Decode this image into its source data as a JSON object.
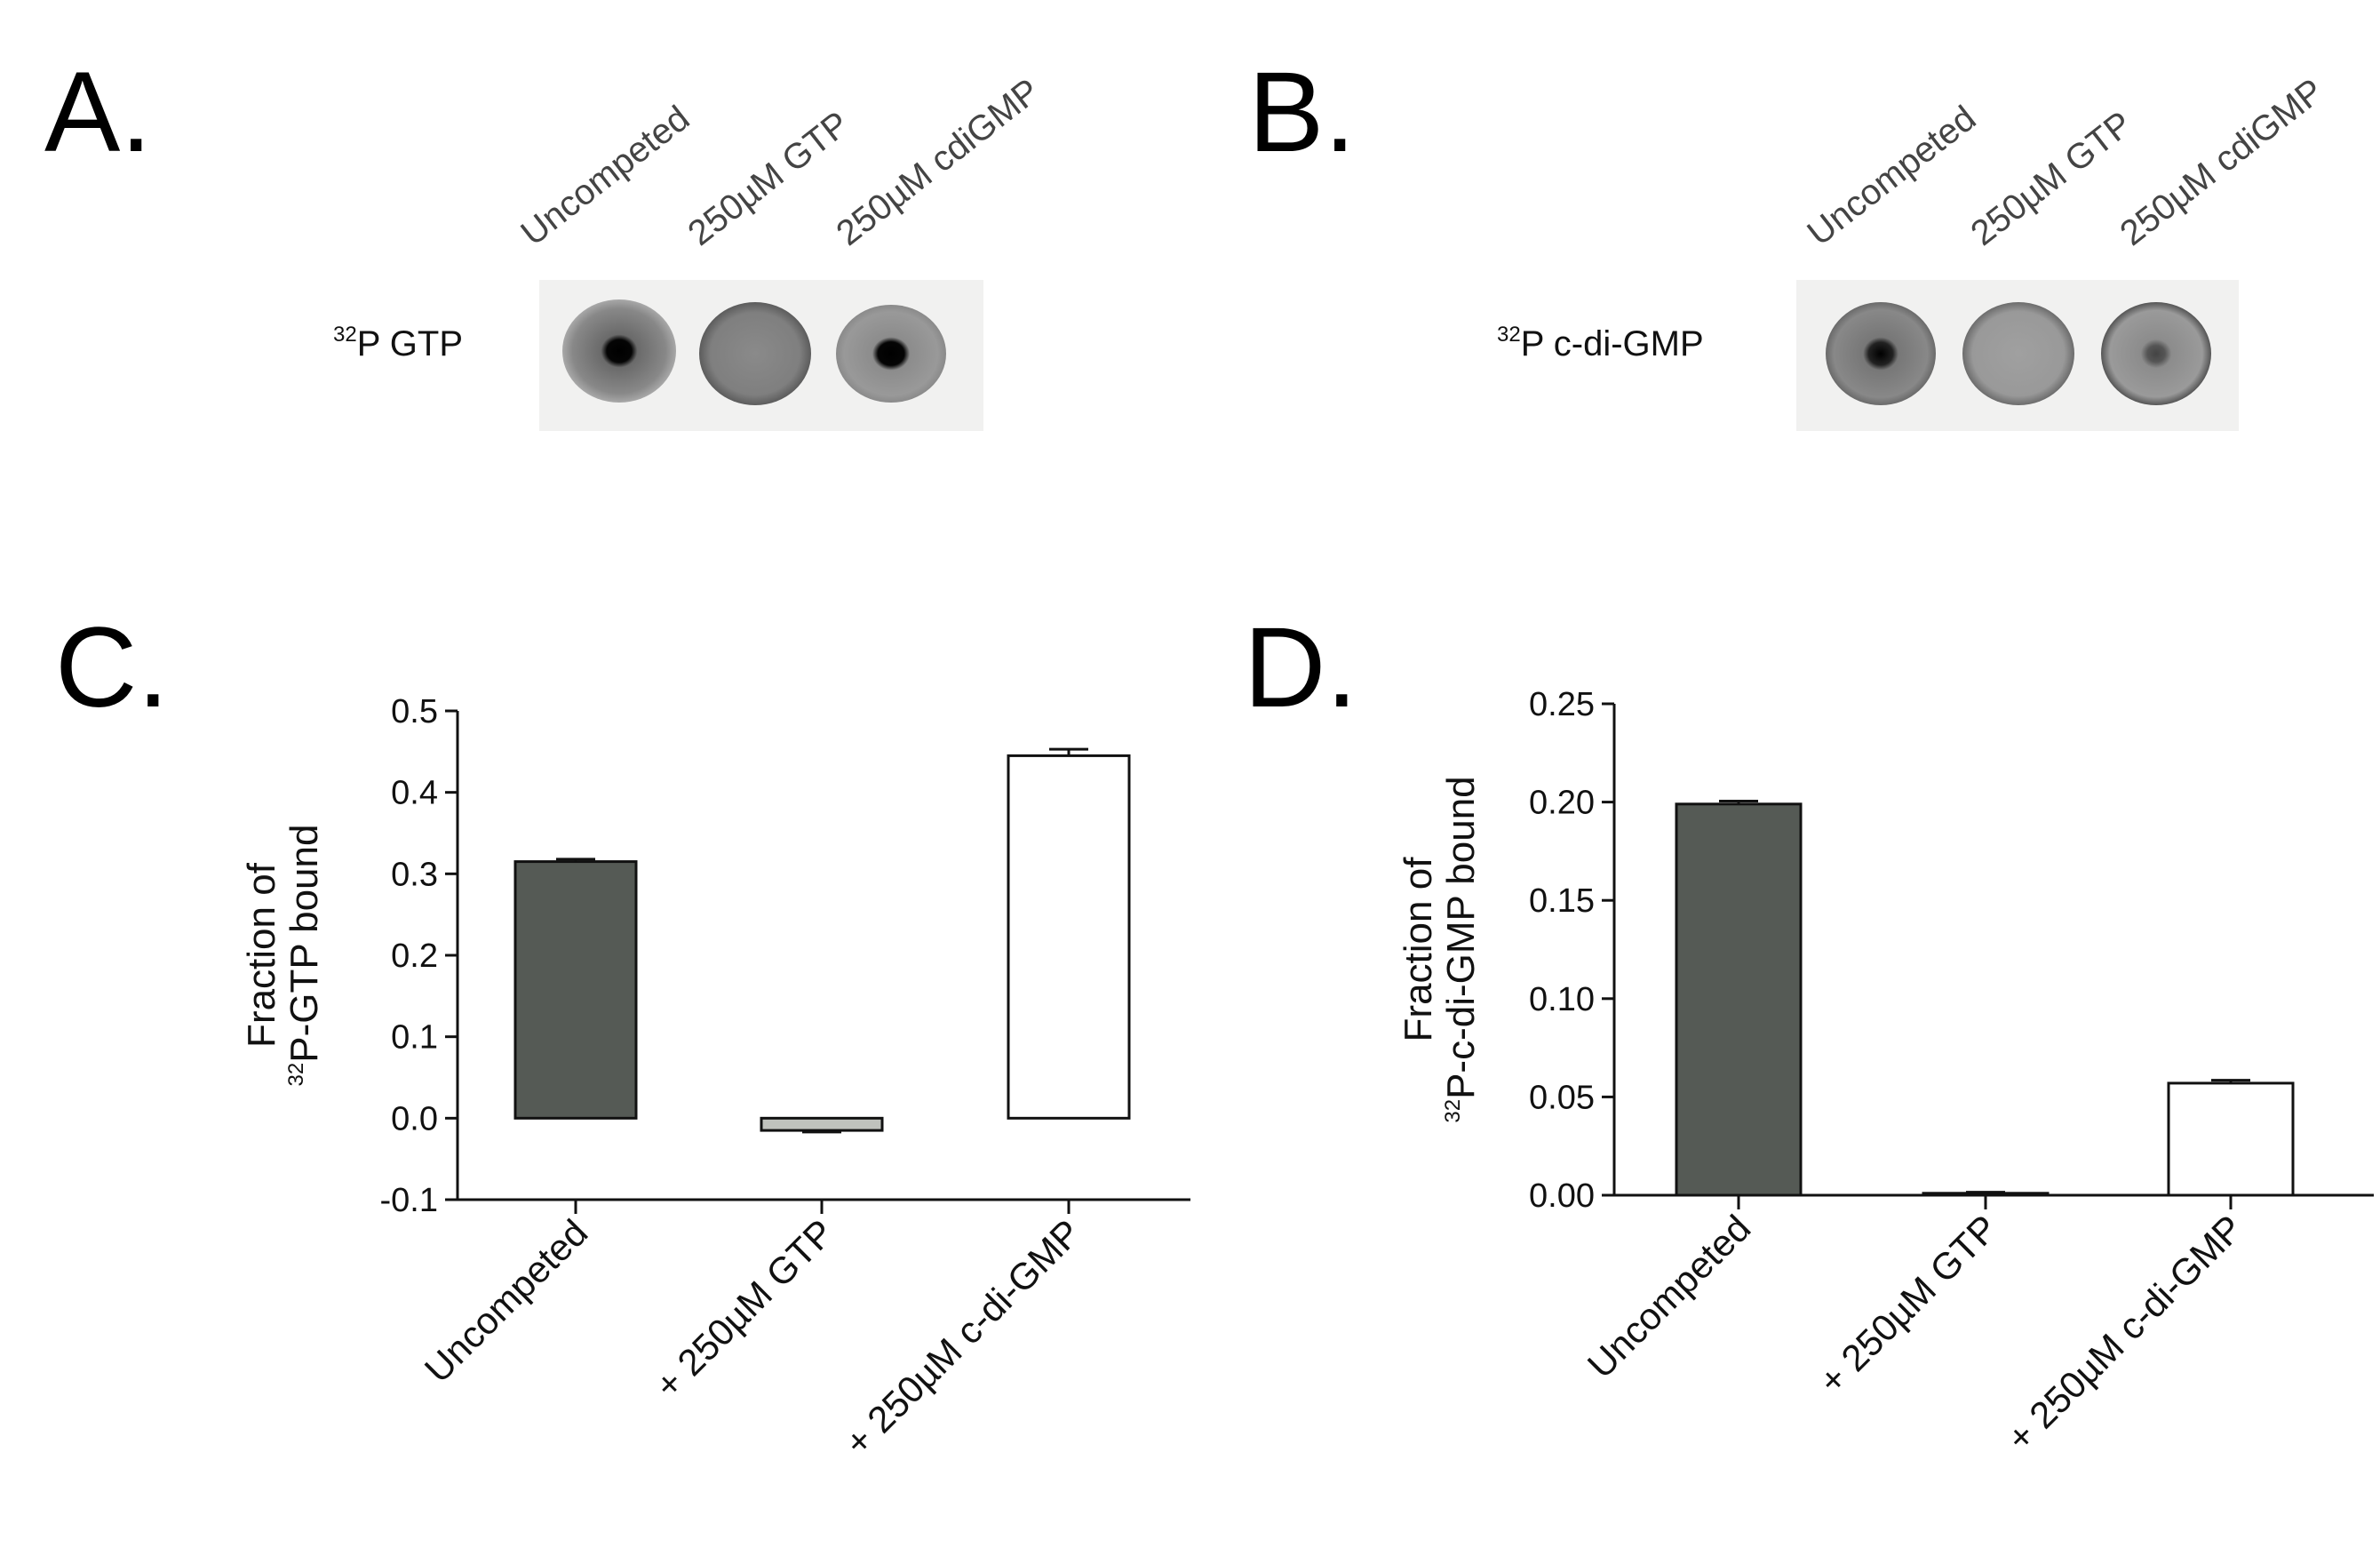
{
  "panels": {
    "A": {
      "letter": "A.",
      "lanes": [
        "Uncompeted",
        "250µM GTP",
        "250µM cdiGMP"
      ],
      "row_label_sup": "32",
      "row_label": "P GTP"
    },
    "B": {
      "letter": "B.",
      "lanes": [
        "Uncompeted",
        "250µM GTP",
        "250µM cdiGMP"
      ],
      "row_label_sup": "32",
      "row_label": "P c-di-GMP"
    },
    "C": {
      "letter": "C."
    },
    "D": {
      "letter": "D."
    }
  },
  "chart_data": [
    {
      "panel": "C",
      "type": "bar",
      "categories": [
        "Uncompeted",
        "+ 250µM GTP",
        "+ 250µM c-di-GMP"
      ],
      "values": [
        0.315,
        -0.015,
        0.445
      ],
      "errors": [
        0.003,
        0.002,
        0.008
      ],
      "bar_colors": [
        "#555a55",
        "#c0c2bd",
        "#ffffff"
      ],
      "ylabel_line1": "Fraction of",
      "ylabel_sup": "32",
      "ylabel_line2": "P-GTP bound",
      "ylim": [
        -0.1,
        0.5
      ],
      "yticks": [
        -0.1,
        0.0,
        0.1,
        0.2,
        0.3,
        0.4,
        0.5
      ],
      "ytick_labels": [
        "-0.1",
        "0.0",
        "0.1",
        "0.2",
        "0.3",
        "0.4",
        "0.5"
      ]
    },
    {
      "panel": "D",
      "type": "bar",
      "categories": [
        "Uncompeted",
        "+ 250µM GTP",
        "+ 250µM c-di-GMP"
      ],
      "values": [
        0.199,
        0.001,
        0.057
      ],
      "errors": [
        0.0015,
        0.0005,
        0.0015
      ],
      "bar_colors": [
        "#555a55",
        "#c0c2bd",
        "#ffffff"
      ],
      "ylabel_line1": "Fraction of",
      "ylabel_sup": "32",
      "ylabel_line2": "P-c-di-GMP bound",
      "ylim": [
        0.0,
        0.25
      ],
      "yticks": [
        0.0,
        0.05,
        0.1,
        0.15,
        0.2,
        0.25
      ],
      "ytick_labels": [
        "0.00",
        "0.05",
        "0.10",
        "0.15",
        "0.20",
        "0.25"
      ]
    }
  ]
}
